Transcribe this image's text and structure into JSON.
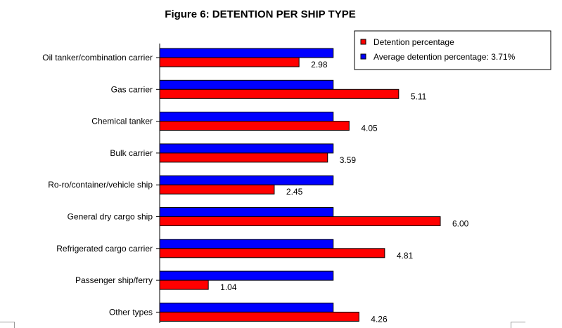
{
  "chart_data": {
    "type": "bar",
    "orientation": "horizontal",
    "title": "Figure 6: DETENTION PER SHIP TYPE",
    "categories": [
      "Oil tanker/combination carrier",
      "Gas carrier",
      "Chemical tanker",
      "Bulk carrier",
      "Ro-ro/container/vehicle ship",
      "General dry cargo ship",
      "Refrigerated cargo carrier",
      "Passenger ship/ferry",
      "Other types"
    ],
    "series": [
      {
        "name": "Detention percentage",
        "color": "#ff0000",
        "values": [
          2.98,
          5.11,
          4.05,
          3.59,
          2.45,
          6.0,
          4.81,
          1.04,
          4.26
        ],
        "labels": [
          "2.98",
          "5.11",
          "4.05",
          "3.59",
          "2.45",
          "6.00",
          "4.81",
          "1.04",
          "4.26"
        ]
      },
      {
        "name": "Average detention percentage: 3.71%",
        "color": "#0000ff",
        "values": [
          3.71,
          3.71,
          3.71,
          3.71,
          3.71,
          3.71,
          3.71,
          3.71,
          3.71
        ]
      }
    ],
    "xlim": [
      0,
      7
    ],
    "grid": false,
    "legend_position": "top-right"
  }
}
